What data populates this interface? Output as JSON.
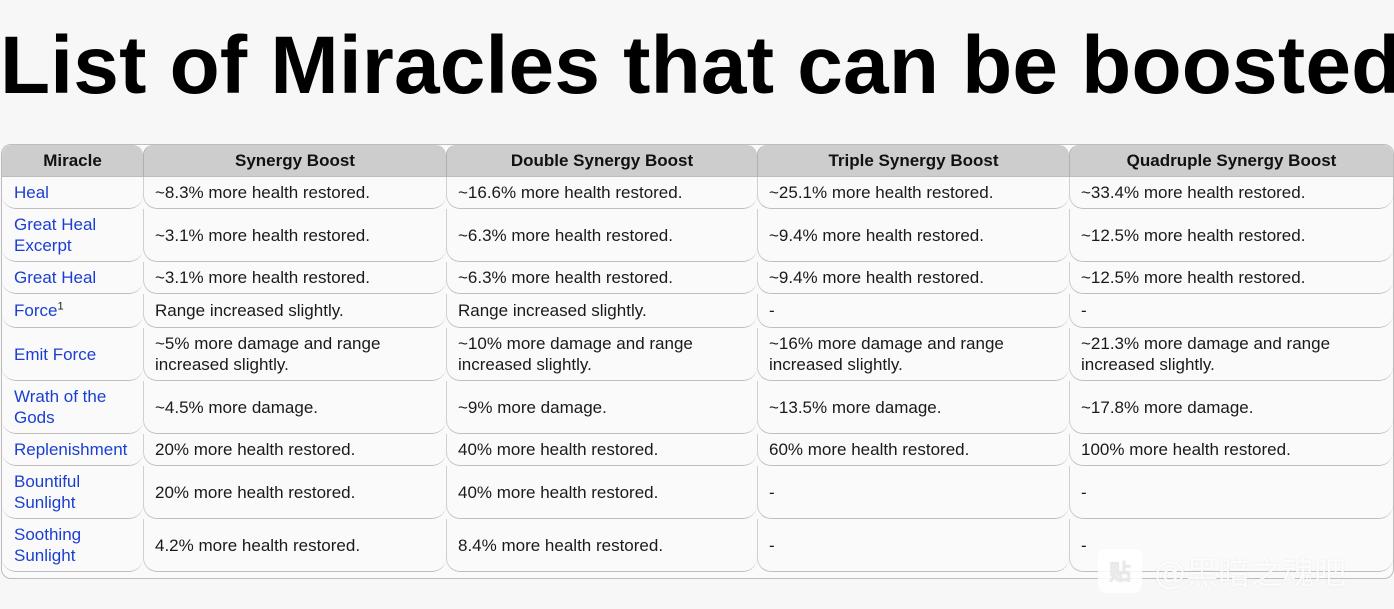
{
  "page": {
    "title": "List of Miracles that can be boosted"
  },
  "table": {
    "headers": [
      "Miracle",
      "Synergy Boost",
      "Double Synergy Boost",
      "Triple Synergy Boost",
      "Quadruple Synergy Boost"
    ],
    "rows": [
      {
        "miracle": "Heal",
        "sup": "",
        "synergy": "~8.3% more health restored.",
        "double": "~16.6% more health restored.",
        "triple": "~25.1% more health restored.",
        "quadruple": "~33.4% more health restored."
      },
      {
        "miracle": "Great Heal Excerpt",
        "sup": "",
        "synergy": "~3.1% more health restored.",
        "double": "~6.3% more health restored.",
        "triple": "~9.4% more health restored.",
        "quadruple": "~12.5% more health restored."
      },
      {
        "miracle": "Great Heal",
        "sup": "",
        "synergy": "~3.1% more health restored.",
        "double": "~6.3% more health restored.",
        "triple": "~9.4% more health restored.",
        "quadruple": "~12.5% more health restored."
      },
      {
        "miracle": "Force",
        "sup": "1",
        "synergy": "Range increased slightly.",
        "double": "Range increased slightly.",
        "triple": "-",
        "quadruple": "-"
      },
      {
        "miracle": "Emit Force",
        "sup": "",
        "synergy": "~5% more damage and range increased slightly.",
        "double": "~10% more damage and range increased slightly.",
        "triple": "~16% more damage and range increased slightly.",
        "quadruple": "~21.3% more damage and range increased slightly."
      },
      {
        "miracle": "Wrath of the Gods",
        "sup": "",
        "synergy": "~4.5% more damage.",
        "double": "~9% more damage.",
        "triple": "~13.5% more damage.",
        "quadruple": "~17.8% more damage."
      },
      {
        "miracle": "Replenishment",
        "sup": "",
        "synergy": "20% more health restored.",
        "double": "40% more health restored.",
        "triple": "60% more health restored.",
        "quadruple": "100% more health restored."
      },
      {
        "miracle": "Bountiful Sunlight",
        "sup": "",
        "synergy": "20% more health restored.",
        "double": "40% more health restored.",
        "triple": "-",
        "quadruple": "-"
      },
      {
        "miracle": "Soothing Sunlight",
        "sup": "",
        "synergy": "4.2% more health restored.",
        "double": "8.4% more health restored.",
        "triple": "-",
        "quadruple": "-"
      }
    ]
  },
  "watermark": {
    "logo_text": "贴",
    "text": "@黑暗之魂吧"
  },
  "colors": {
    "link": "#1a3fd0",
    "header_bg": "#cdcdcd",
    "page_bg": "#f7f7f7"
  }
}
